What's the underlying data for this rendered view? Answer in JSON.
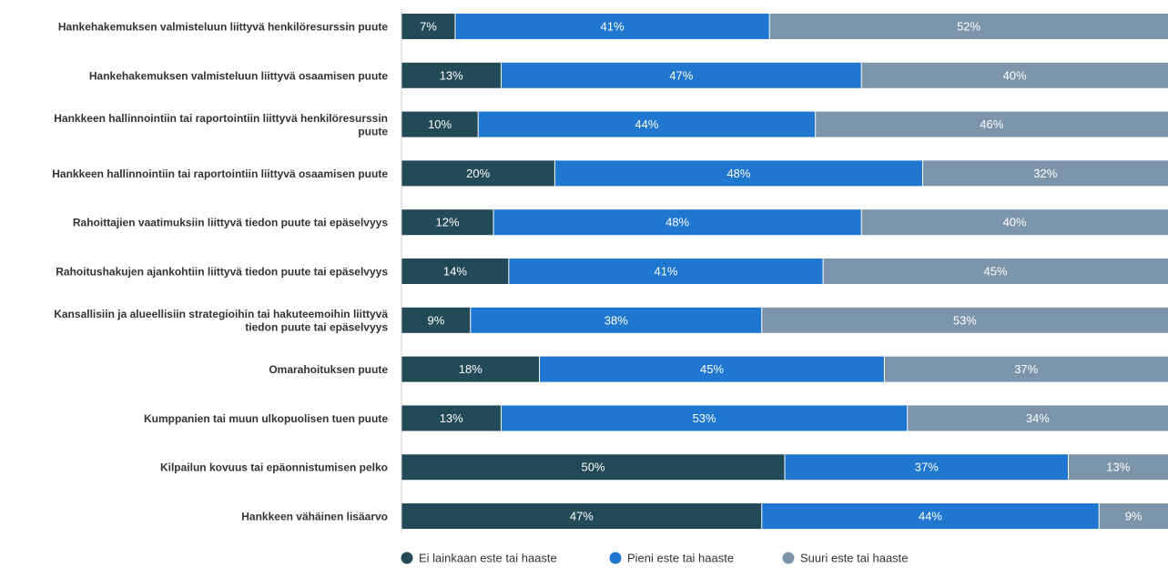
{
  "chart_data": {
    "type": "bar",
    "orientation": "horizontal",
    "stacked": true,
    "categories": [
      [
        "Hankehakemuksen valmisteluun liittyvä henkilöresurssin puute"
      ],
      [
        "Hankehakemuksen valmisteluun liittyvä osaamisen puute"
      ],
      [
        "Hankkeen hallinnointiin tai raportointiin liittyvä henkilöresurssin",
        "puute"
      ],
      [
        "Hankkeen hallinnointiin tai raportointiin liittyvä osaamisen puute"
      ],
      [
        "Rahoittajien vaatimuksiin liittyvä tiedon puute tai epäselvyys"
      ],
      [
        "Rahoitushakujen ajankohtiin liittyvä tiedon puute tai epäselvyys"
      ],
      [
        "Kansallisiin ja alueellisiin strategioihin tai hakuteemoihin liittyvä",
        "tiedon puute tai epäselvyys"
      ],
      [
        "Omarahoituksen puute"
      ],
      [
        "Kumppanien tai muun ulkopuolisen tuen puute"
      ],
      [
        "Kilpailun kovuus tai epäonnistumisen pelko"
      ],
      [
        "Hankkeen vähäinen lisäarvo"
      ]
    ],
    "series": [
      {
        "name": "Ei lainkaan este tai haaste",
        "color": "#234a57",
        "values": [
          7,
          13,
          10,
          20,
          12,
          14,
          9,
          18,
          13,
          50,
          47
        ]
      },
      {
        "name": "Pieni este tai haaste",
        "color": "#1f77cf",
        "values": [
          41,
          47,
          44,
          48,
          48,
          41,
          38,
          45,
          53,
          37,
          44
        ]
      },
      {
        "name": "Suuri este tai haaste",
        "color": "#7c95aa",
        "values": [
          52,
          40,
          46,
          32,
          40,
          45,
          53,
          37,
          34,
          13,
          9
        ]
      }
    ],
    "value_suffix": "%",
    "xlim": [
      0,
      100
    ],
    "legend_position": "bottom",
    "grid": false
  }
}
